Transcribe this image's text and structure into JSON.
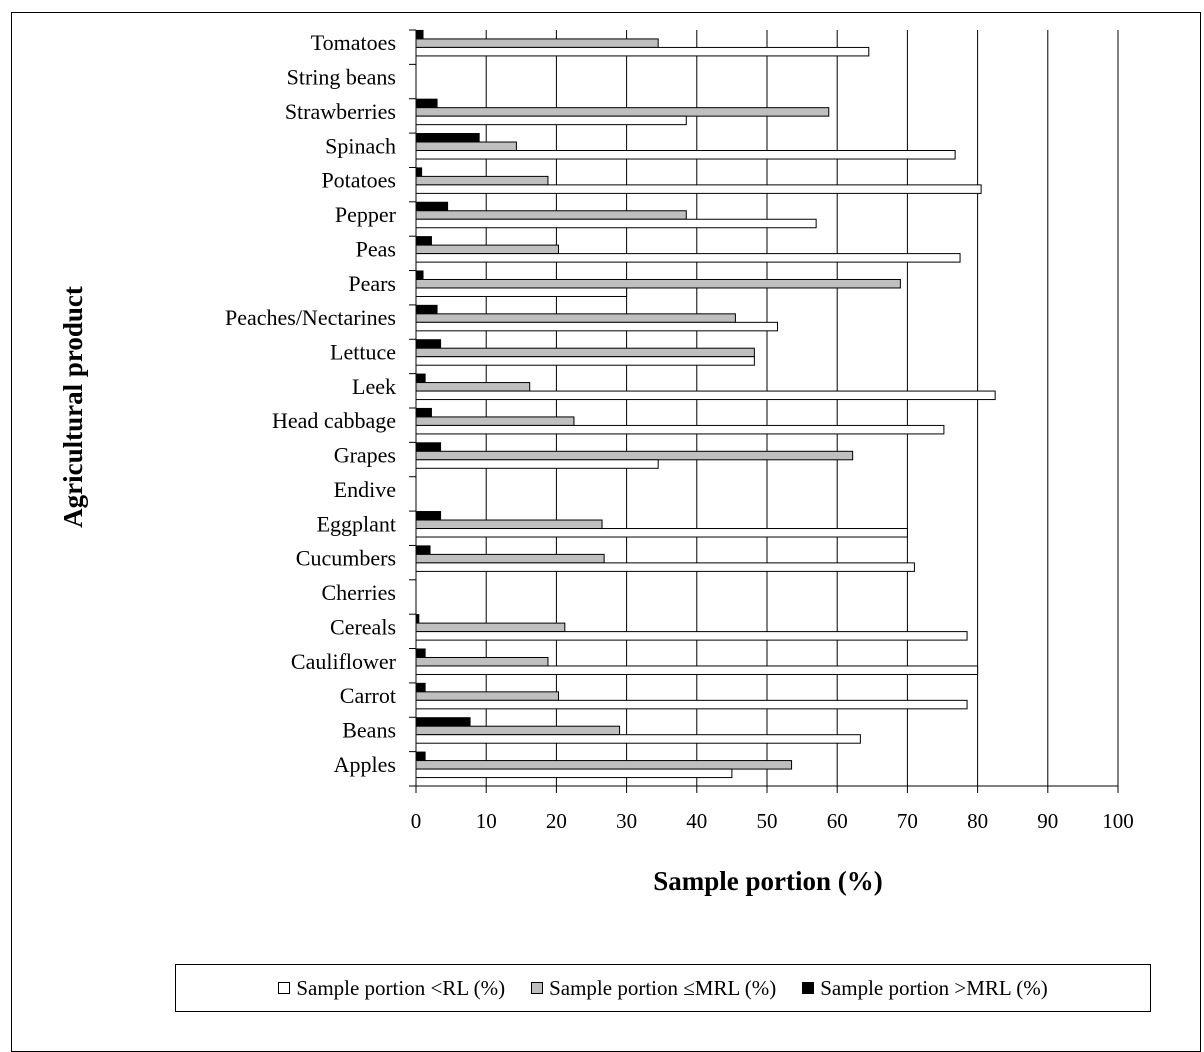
{
  "chart_data": {
    "type": "bar",
    "orientation": "horizontal",
    "xlabel": "Sample portion (%)",
    "ylabel": "Agricultural product",
    "xlim": [
      0,
      100
    ],
    "xticks": [
      0,
      10,
      20,
      30,
      40,
      50,
      60,
      70,
      80,
      90,
      100
    ],
    "grid": "vertical",
    "legend_placement": "bottom",
    "categories": [
      "Tomatoes",
      "String beans",
      "Strawberries",
      "Spinach",
      "Potatoes",
      "Pepper",
      "Peas",
      "Pears",
      "Peaches/Nectarines",
      "Lettuce",
      "Leek",
      "Head cabbage",
      "Grapes",
      "Endive",
      "Eggplant",
      "Cucumbers",
      "Cherries",
      "Cereals",
      "Cauliflower",
      "Carrot",
      "Beans",
      "Apples"
    ],
    "series": [
      {
        "name": "Sample portion <RL (%)",
        "color": "#ffffff",
        "values": [
          64.5,
          null,
          38.5,
          76.8,
          80.5,
          57.0,
          77.5,
          30.0,
          51.5,
          48.2,
          82.5,
          75.2,
          34.5,
          null,
          70.0,
          71.0,
          null,
          78.5,
          80.0,
          78.5,
          63.3,
          45.0
        ]
      },
      {
        "name": "Sample portion ≤MRL (%)",
        "color": "#bfbfbf",
        "values": [
          34.5,
          null,
          58.8,
          14.3,
          18.8,
          38.5,
          20.3,
          69.0,
          45.5,
          48.2,
          16.2,
          22.5,
          62.2,
          null,
          26.5,
          26.8,
          null,
          21.2,
          18.8,
          20.3,
          29.0,
          53.5
        ]
      },
      {
        "name": "Sample portion >MRL (%)",
        "color": "#000000",
        "values": [
          1.0,
          null,
          3.0,
          9.0,
          0.8,
          4.5,
          2.2,
          1.0,
          3.0,
          3.5,
          1.3,
          2.2,
          3.5,
          null,
          3.5,
          2.0,
          null,
          0.4,
          1.3,
          1.3,
          7.7,
          1.3
        ]
      }
    ]
  }
}
